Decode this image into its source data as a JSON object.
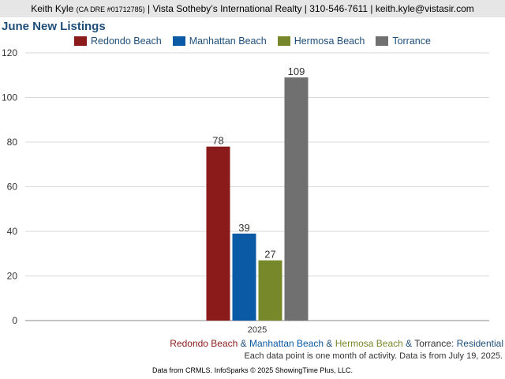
{
  "header": {
    "name": "Keith Kyle",
    "license": "(CA DRE #01712785)",
    "rest": "| Vista Sotheby’s International Realty | 310-546-7611 | keith.kyle@vistasir.com"
  },
  "footer": {
    "series_names": [
      "Redondo Beach",
      "Manhattan Beach",
      "Hermosa Beach",
      "Torrance"
    ],
    "separator": " & ",
    "suffix": ": Residential",
    "note": "Each data point is one month of activity. Data is from July 19, 2025.",
    "source": "Data from CRMLS. InfoSparks © 2025 ShowingTime Plus, LLC."
  },
  "chart_data": {
    "type": "bar",
    "title": "June New Listings",
    "categories": [
      "2025"
    ],
    "series": [
      {
        "name": "Redondo Beach",
        "values": [
          78
        ],
        "color": "#8b1a1a"
      },
      {
        "name": "Manhattan Beach",
        "values": [
          39
        ],
        "color": "#0a5aa5"
      },
      {
        "name": "Hermosa Beach",
        "values": [
          27
        ],
        "color": "#76882a"
      },
      {
        "name": "Torrance",
        "values": [
          109
        ],
        "color": "#707070"
      }
    ],
    "ylim": [
      0,
      120
    ],
    "yticks": [
      0,
      20,
      40,
      60,
      80,
      100,
      120
    ],
    "grid": true,
    "legend_position": "top"
  }
}
